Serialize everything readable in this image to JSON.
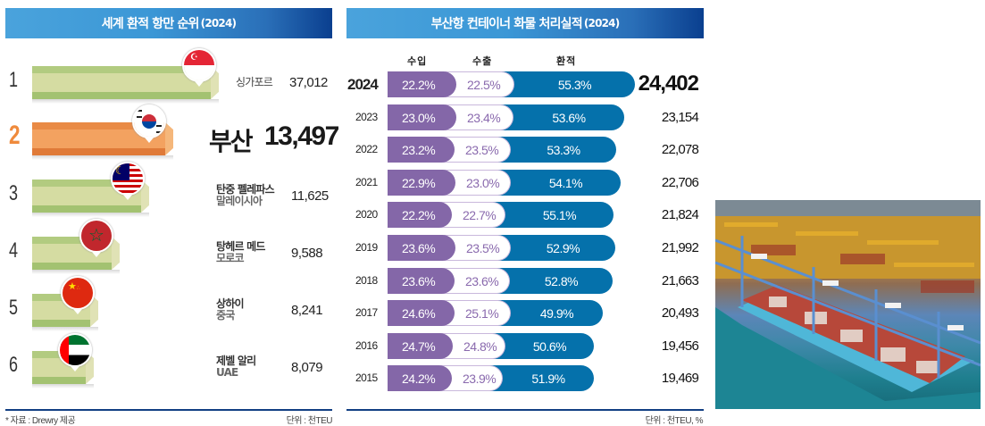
{
  "left_panel": {
    "title": "세계 환적 항만 순위",
    "title_year": "(2024)",
    "ranks": [
      {
        "rank": "1",
        "port": "싱가포르",
        "country": "",
        "value": "37,012",
        "value_num": 37012,
        "flag": "singapore-flag-icon",
        "highlight": false
      },
      {
        "rank": "2",
        "port": "부산",
        "country": "",
        "value": "13,497",
        "value_num": 13497,
        "flag": "south-korea-flag-icon",
        "highlight": true
      },
      {
        "rank": "3",
        "port": "탄중 펠레파스",
        "country": "말레이시아",
        "value": "11,625",
        "value_num": 11625,
        "flag": "malaysia-flag-icon",
        "highlight": false
      },
      {
        "rank": "4",
        "port": "탕헤르 메드",
        "country": "모로코",
        "value": "9,588",
        "value_num": 9588,
        "flag": "morocco-flag-icon",
        "highlight": false
      },
      {
        "rank": "5",
        "port": "상하이",
        "country": "중국",
        "value": "8,241",
        "value_num": 8241,
        "flag": "china-flag-icon",
        "highlight": false
      },
      {
        "rank": "6",
        "port": "제벨 알리",
        "country": "UAE",
        "value": "8,079",
        "value_num": 8079,
        "flag": "uae-flag-icon",
        "highlight": false
      }
    ],
    "source": "* 자료 : Drewry 제공",
    "unit": "단위 : 천TEU"
  },
  "right_panel": {
    "title": "부산항 컨테이너 화물 처리실적",
    "title_year": "(2024)",
    "columns": [
      "수입",
      "수출",
      "환적"
    ],
    "unit": "단위 : 천TEU, %"
  },
  "chart_data": [
    {
      "type": "bar",
      "title": "세계 환적 항만 순위 (2024)",
      "categories": [
        "싱가포르",
        "부산",
        "탄중 펠레파스 (말레이시아)",
        "탕헤르 메드 (모로코)",
        "상하이 (중국)",
        "제벨 알리 (UAE)"
      ],
      "values": [
        37012,
        13497,
        11625,
        9588,
        8241,
        8079
      ],
      "unit": "천TEU",
      "orientation": "horizontal"
    },
    {
      "type": "bar",
      "stacked": true,
      "orientation": "horizontal",
      "title": "부산항 컨테이너 화물 처리실적 (2024)",
      "categories": [
        "2024",
        "2023",
        "2022",
        "2021",
        "2020",
        "2019",
        "2018",
        "2017",
        "2016",
        "2015"
      ],
      "series": [
        {
          "name": "수입",
          "values": [
            22.2,
            23.0,
            23.2,
            22.9,
            22.2,
            23.6,
            23.6,
            24.6,
            24.7,
            24.2
          ],
          "color": "#8467a8"
        },
        {
          "name": "수출",
          "values": [
            22.5,
            23.4,
            23.5,
            23.0,
            22.7,
            23.5,
            23.6,
            25.1,
            24.8,
            23.9
          ],
          "color": "#ffffff"
        },
        {
          "name": "환적",
          "values": [
            55.3,
            53.6,
            53.3,
            54.1,
            55.1,
            52.9,
            52.8,
            49.9,
            50.6,
            51.9
          ],
          "color": "#0571ab"
        }
      ],
      "totals": [
        24402,
        23154,
        22078,
        22706,
        21824,
        21992,
        21663,
        20493,
        19456,
        19469
      ],
      "totals_text": [
        "24,402",
        "23,154",
        "22,078",
        "22,706",
        "21,824",
        "21,992",
        "21,663",
        "20,493",
        "19,456",
        "19,469"
      ],
      "unit": "천TEU, %"
    }
  ],
  "photo": {
    "description": "busan-port-container-terminal-photo"
  }
}
